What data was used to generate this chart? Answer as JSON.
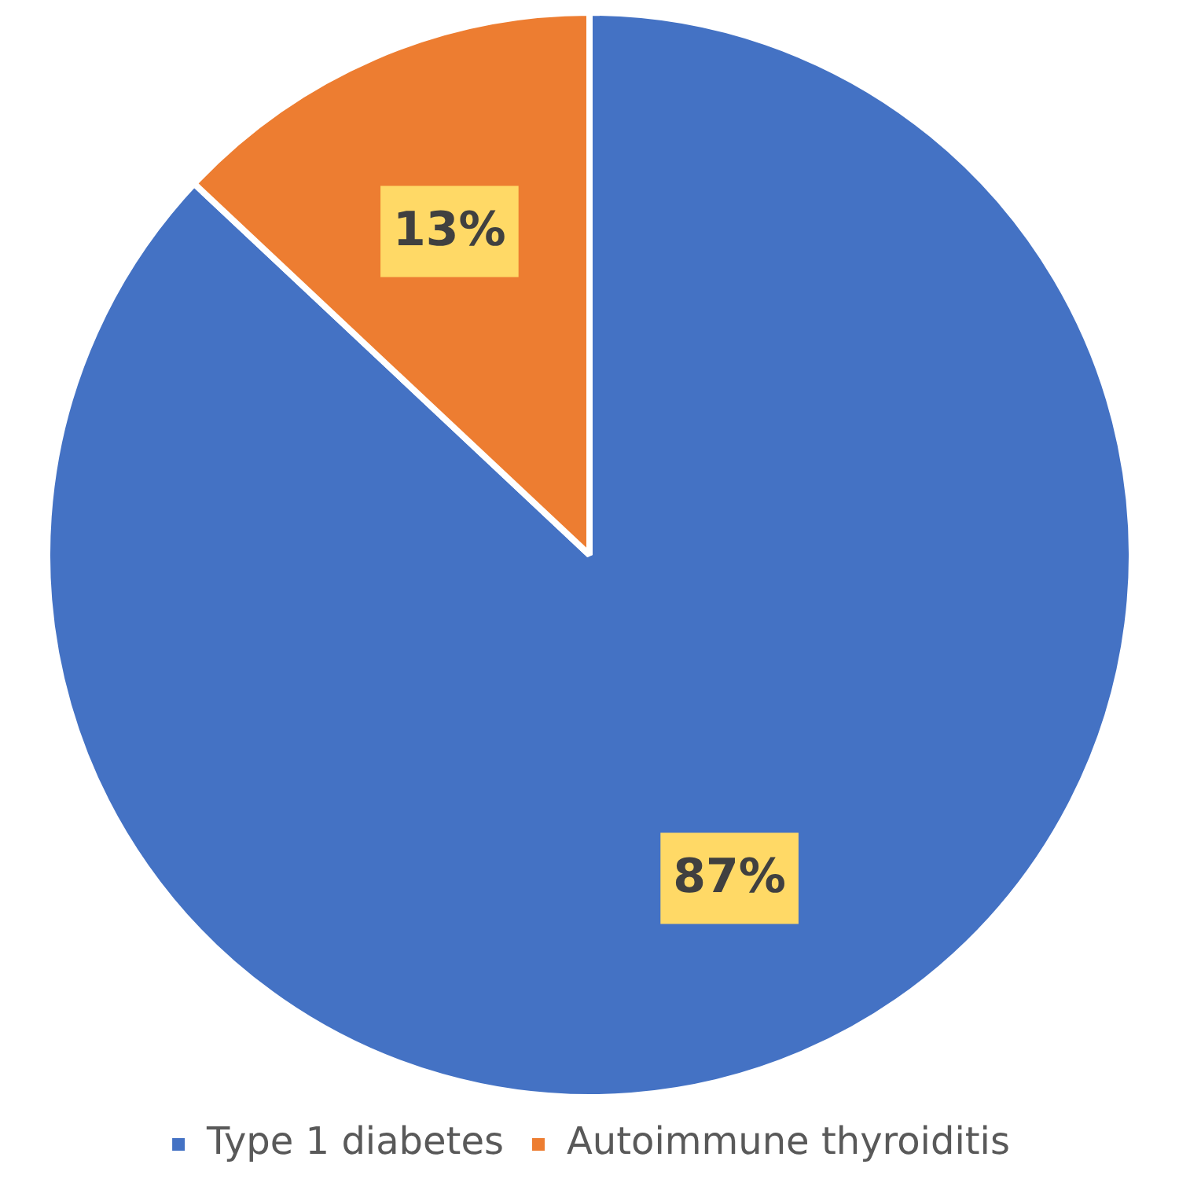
{
  "chart_data": {
    "type": "pie",
    "categories": [
      "Type 1 diabetes",
      "Autoimmune thyroiditis"
    ],
    "values": [
      87,
      13
    ],
    "colors": [
      "#4472c4",
      "#ed7d31"
    ],
    "value_labels": [
      "87%",
      "13%"
    ],
    "legend": "bottom"
  }
}
